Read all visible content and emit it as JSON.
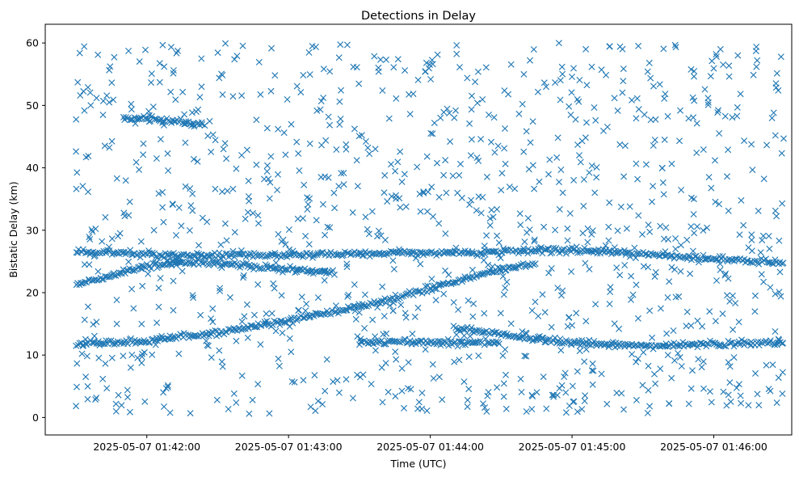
{
  "chart_data": {
    "type": "scatter",
    "title": "Detections in Delay",
    "xlabel": "Time (UTC)",
    "ylabel": "Bistatic Delay (km)",
    "marker": "x",
    "color": "#1f77b4",
    "grid": false,
    "legend": "none",
    "xlim": [
      "2025-05-07 01:41:17",
      "2025-05-07 01:46:33"
    ],
    "ylim": [
      -2.8,
      63
    ],
    "xticks": [
      "2025-05-07 01:42:00",
      "2025-05-07 01:43:00",
      "2025-05-07 01:44:00",
      "2025-05-07 01:45:00",
      "2025-05-07 01:46:00"
    ],
    "yticks": [
      0,
      10,
      20,
      30,
      40,
      50,
      60
    ],
    "tracks": [
      {
        "t": [
          "2025-05-07 01:41:30",
          "2025-05-07 01:42:00",
          "2025-05-07 01:42:30",
          "2025-05-07 01:43:00",
          "2025-05-07 01:43:30",
          "2025-05-07 01:44:00",
          "2025-05-07 01:44:30",
          "2025-05-07 01:44:45"
        ],
        "delay": [
          11.8,
          12.3,
          13.6,
          15.5,
          17.8,
          20.6,
          23.8,
          24.8
        ]
      },
      {
        "t": [
          "2025-05-07 01:44:20",
          "2025-05-07 01:44:45",
          "2025-05-07 01:45:00",
          "2025-05-07 01:45:30",
          "2025-05-07 01:46:00",
          "2025-05-07 01:46:30"
        ],
        "delay": [
          26.3,
          26.8,
          26.8,
          26.2,
          25.4,
          24.8
        ]
      },
      {
        "t": [
          "2025-05-07 01:41:30",
          "2025-05-07 01:41:45",
          "2025-05-07 01:42:00",
          "2025-05-07 01:42:30",
          "2025-05-07 01:43:00",
          "2025-05-07 01:43:30",
          "2025-05-07 01:44:00",
          "2025-05-07 01:44:20"
        ],
        "delay": [
          26.6,
          26.4,
          26.1,
          26.0,
          26.1,
          26.2,
          26.4,
          26.5
        ]
      },
      {
        "t": [
          "2025-05-07 01:41:30",
          "2025-05-07 01:41:45",
          "2025-05-07 01:42:00",
          "2025-05-07 01:42:15"
        ],
        "delay": [
          21.3,
          22.8,
          24.2,
          25.0
        ]
      },
      {
        "t": [
          "2025-05-07 01:42:10",
          "2025-05-07 01:42:30",
          "2025-05-07 01:43:00",
          "2025-05-07 01:43:20"
        ],
        "delay": [
          25.0,
          24.6,
          23.8,
          23.2
        ]
      },
      {
        "t": [
          "2025-05-07 01:43:30",
          "2025-05-07 01:44:00",
          "2025-05-07 01:44:30"
        ],
        "delay": [
          12.2,
          12.0,
          12.0
        ]
      },
      {
        "t": [
          "2025-05-07 01:44:10",
          "2025-05-07 01:44:30",
          "2025-05-07 01:45:00",
          "2025-05-07 01:45:30",
          "2025-05-07 01:46:00",
          "2025-05-07 01:46:30"
        ],
        "delay": [
          14.5,
          13.2,
          12.0,
          11.5,
          11.7,
          12.0
        ]
      },
      {
        "t": [
          "2025-05-07 01:41:50",
          "2025-05-07 01:42:05",
          "2025-05-07 01:42:25"
        ],
        "delay": [
          48.0,
          47.7,
          46.9
        ]
      }
    ],
    "noise": {
      "delay_range": [
        0.5,
        60
      ],
      "time_range": [
        "2025-05-07 01:41:30",
        "2025-05-07 01:46:30"
      ],
      "count": 1100
    }
  }
}
